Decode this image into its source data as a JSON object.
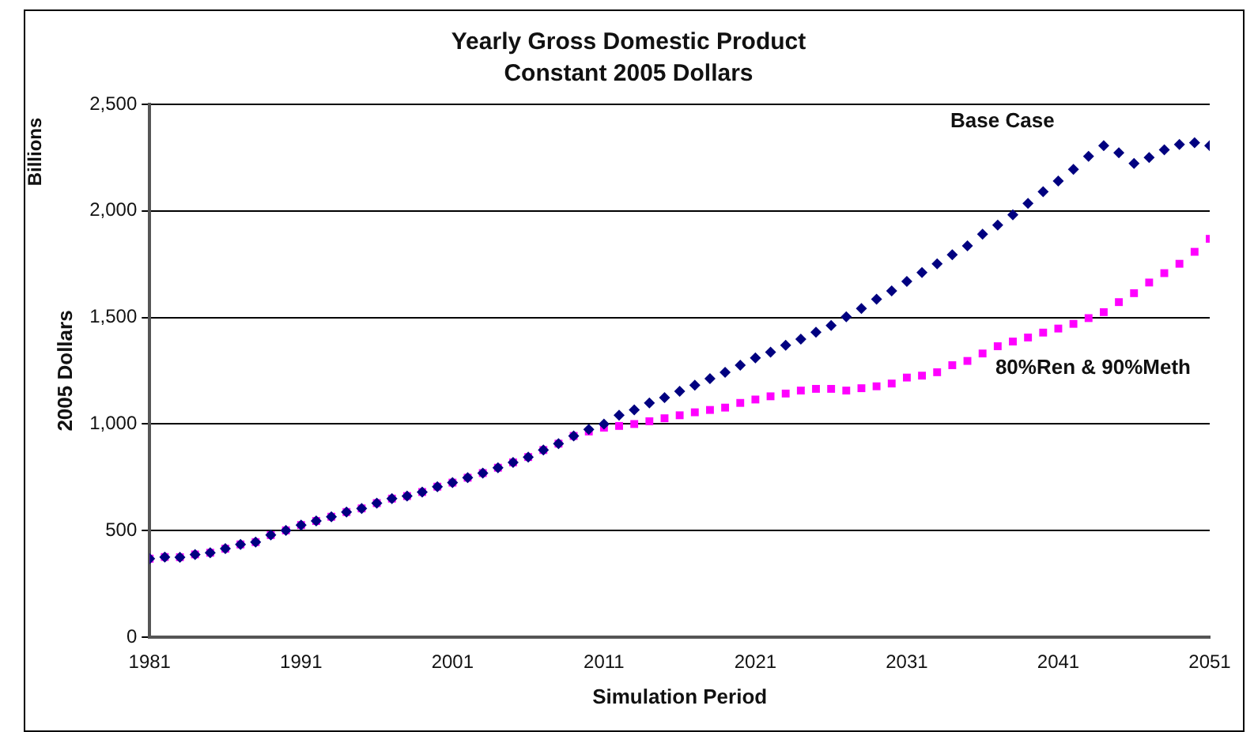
{
  "chart_data": {
    "type": "scatter",
    "title": "Yearly Gross Domestic Product",
    "subtitle": "Constant 2005 Dollars",
    "xlabel": "Simulation Period",
    "ylabel": "2005 Dollars",
    "annotations": [
      "Billions"
    ],
    "x": [
      1981,
      1982,
      1983,
      1984,
      1985,
      1986,
      1987,
      1988,
      1989,
      1990,
      1991,
      1992,
      1993,
      1994,
      1995,
      1996,
      1997,
      1998,
      1999,
      2000,
      2001,
      2002,
      2003,
      2004,
      2005,
      2006,
      2007,
      2008,
      2009,
      2010,
      2011,
      2012,
      2013,
      2014,
      2015,
      2016,
      2017,
      2018,
      2019,
      2020,
      2021,
      2022,
      2023,
      2024,
      2025,
      2026,
      2027,
      2028,
      2029,
      2030,
      2031,
      2032,
      2033,
      2034,
      2035,
      2036,
      2037,
      2038,
      2039,
      2040,
      2041,
      2042,
      2043,
      2044,
      2045,
      2046,
      2047,
      2048,
      2049,
      2050,
      2051
    ],
    "series": [
      {
        "name": "Base Case",
        "color": "#000080",
        "marker": "diamond",
        "values": [
          368,
          376,
          375,
          388,
          396,
          415,
          435,
          446,
          479,
          501,
          526,
          545,
          565,
          587,
          604,
          629,
          650,
          662,
          681,
          706,
          725,
          748,
          770,
          795,
          820,
          845,
          878,
          908,
          944,
          975,
          1000,
          1041,
          1066,
          1099,
          1124,
          1154,
          1182,
          1213,
          1243,
          1276,
          1310,
          1337,
          1370,
          1398,
          1431,
          1462,
          1503,
          1542,
          1586,
          1625,
          1669,
          1711,
          1752,
          1794,
          1836,
          1891,
          1933,
          1982,
          2035,
          2090,
          2140,
          2195,
          2256,
          2306,
          2273,
          2223,
          2251,
          2287,
          2312,
          2320,
          2306
        ]
      },
      {
        "name": "80%Ren & 90%Meth",
        "color": "#ff00ff",
        "marker": "square",
        "values": [
          368,
          376,
          375,
          388,
          396,
          415,
          435,
          446,
          479,
          501,
          526,
          545,
          565,
          587,
          604,
          629,
          650,
          662,
          681,
          706,
          725,
          748,
          770,
          795,
          820,
          845,
          878,
          908,
          944,
          965,
          983,
          991,
          1000,
          1013,
          1027,
          1041,
          1055,
          1066,
          1077,
          1099,
          1115,
          1130,
          1143,
          1157,
          1165,
          1165,
          1157,
          1168,
          1177,
          1190,
          1218,
          1227,
          1243,
          1276,
          1296,
          1331,
          1365,
          1387,
          1406,
          1429,
          1448,
          1470,
          1497,
          1525,
          1572,
          1614,
          1664,
          1708,
          1752,
          1808,
          1869
        ]
      }
    ],
    "xlim": [
      1981,
      2051
    ],
    "xticks": [
      1981,
      1991,
      2001,
      2011,
      2021,
      2031,
      2041,
      2051
    ],
    "ylim": [
      0,
      2500
    ],
    "yticks": [
      {
        "value": 0,
        "label": "0"
      },
      {
        "value": 500,
        "label": "500"
      },
      {
        "value": 1000,
        "label": "1,000"
      },
      {
        "value": 1500,
        "label": "1,500"
      },
      {
        "value": 2000,
        "label": "2,000"
      },
      {
        "value": 2500,
        "label": "2,500"
      }
    ],
    "grid": "y",
    "legend": false
  }
}
